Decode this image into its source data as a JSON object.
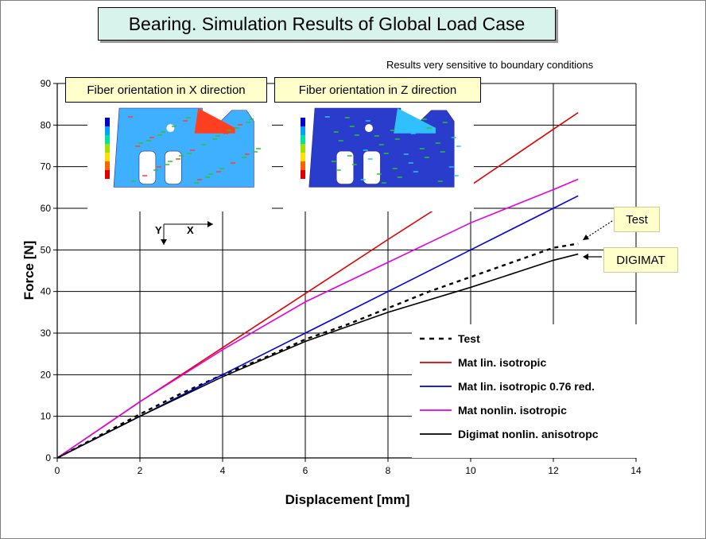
{
  "title": "Bearing. Simulation Results of Global Load Case",
  "note": "Results very sensitive to boundary conditions",
  "insets": {
    "x_title": "Fiber orientation in X direction",
    "z_title": "Fiber orientation in Z direction",
    "axis_y": "Y",
    "axis_x": "X"
  },
  "callouts": {
    "test": "Test",
    "digimat": "DIGIMAT"
  },
  "colors": {
    "test": "#000000",
    "lin": "#e00000",
    "lin076": "#0000e0",
    "nonlin": "#e000e0",
    "digimat": "#000000",
    "title_bg": "#d8f2ec",
    "callout_bg": "#ffffcc"
  },
  "chart_data": {
    "type": "line",
    "xlabel": "Displacement [mm]",
    "ylabel": "Force [N]",
    "xlim": [
      0,
      14
    ],
    "ylim": [
      0,
      90
    ],
    "xticks": [
      0,
      2,
      4,
      6,
      8,
      10,
      12,
      14
    ],
    "yticks": [
      0,
      10,
      20,
      30,
      40,
      50,
      60,
      70,
      80,
      90
    ],
    "grid": true,
    "legend_position": "bottom-right",
    "series": [
      {
        "name": "Test",
        "style": "dashed",
        "x": [
          0,
          2,
          3,
          4,
          5,
          6,
          7,
          8,
          9,
          10,
          11,
          12,
          12.6
        ],
        "y": [
          0,
          10.5,
          15.5,
          20,
          24,
          28.5,
          32,
          36,
          40,
          43.5,
          47,
          50.5,
          51.5
        ]
      },
      {
        "name": "Mat lin. isotropic",
        "style": "solid",
        "x": [
          0,
          2,
          4,
          6,
          8,
          9.1,
          10,
          12,
          12.6
        ],
        "y": [
          0,
          13.5,
          26.5,
          39.5,
          52.5,
          59.5,
          65.5,
          79,
          83
        ]
      },
      {
        "name": "Mat lin. isotropic 0.76 red.",
        "style": "solid",
        "x": [
          0,
          2,
          4,
          6,
          8,
          10,
          12,
          12.6
        ],
        "y": [
          0,
          10,
          20,
          30,
          40,
          50,
          60,
          63
        ]
      },
      {
        "name": "Mat nonlin. isotropic",
        "style": "solid",
        "x": [
          0,
          2,
          4,
          6,
          8,
          10,
          12,
          12.6
        ],
        "y": [
          0,
          13.5,
          26,
          37.5,
          47,
          56.5,
          64.5,
          67
        ]
      },
      {
        "name": "Digimat nonlin. anisotropc",
        "style": "solid",
        "x": [
          0,
          2,
          4,
          6,
          8,
          10,
          12,
          12.6
        ],
        "y": [
          0,
          10,
          19.5,
          28,
          35,
          41,
          47.5,
          49
        ]
      }
    ]
  }
}
